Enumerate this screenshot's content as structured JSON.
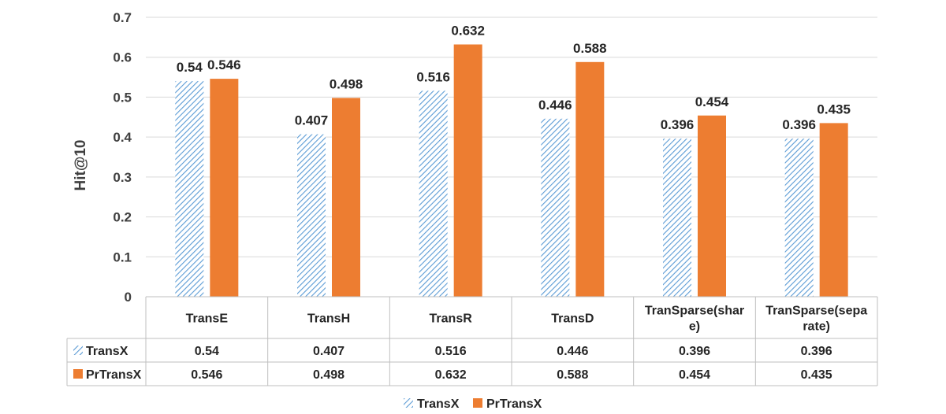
{
  "chart_data": {
    "type": "bar",
    "ylabel": "Hit@10",
    "ylim": [
      0,
      0.7
    ],
    "yticks": [
      "0",
      "0.1",
      "0.2",
      "0.3",
      "0.4",
      "0.5",
      "0.6",
      "0.7"
    ],
    "ytick_values": [
      0,
      0.1,
      0.2,
      0.3,
      0.4,
      0.5,
      0.6,
      0.7
    ],
    "grid": true,
    "legend_position": "bottom",
    "data_table": true,
    "categories": [
      "TransE",
      "TransH",
      "TransR",
      "TransD",
      "TranSparse(share)",
      "TranSparse(separate)"
    ],
    "category_lines": [
      [
        "TransE"
      ],
      [
        "TransH"
      ],
      [
        "TransR"
      ],
      [
        "TransD"
      ],
      [
        "TranSparse(shar",
        "e)"
      ],
      [
        "TranSparse(sepa",
        "rate)"
      ]
    ],
    "series": [
      {
        "name": "TransX",
        "values": [
          0.54,
          0.407,
          0.516,
          0.446,
          0.396,
          0.396
        ],
        "labels": [
          "0.54",
          "0.407",
          "0.516",
          "0.446",
          "0.396",
          "0.396"
        ],
        "style": "hatched",
        "color": "#5b9bd5"
      },
      {
        "name": "PrTransX",
        "values": [
          0.546,
          0.498,
          0.632,
          0.588,
          0.454,
          0.435
        ],
        "labels": [
          "0.546",
          "0.498",
          "0.632",
          "0.588",
          "0.454",
          "0.435"
        ],
        "style": "solid",
        "color": "#ed7d31"
      }
    ]
  }
}
